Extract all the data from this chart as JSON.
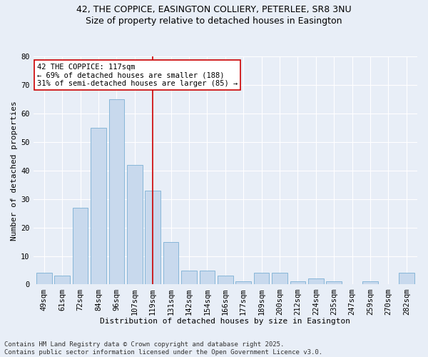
{
  "title_line1": "42, THE COPPICE, EASINGTON COLLIERY, PETERLEE, SR8 3NU",
  "title_line2": "Size of property relative to detached houses in Easington",
  "xlabel": "Distribution of detached houses by size in Easington",
  "ylabel": "Number of detached properties",
  "categories": [
    "49sqm",
    "61sqm",
    "72sqm",
    "84sqm",
    "96sqm",
    "107sqm",
    "119sqm",
    "131sqm",
    "142sqm",
    "154sqm",
    "166sqm",
    "177sqm",
    "189sqm",
    "200sqm",
    "212sqm",
    "224sqm",
    "235sqm",
    "247sqm",
    "259sqm",
    "270sqm",
    "282sqm"
  ],
  "values": [
    4,
    3,
    27,
    55,
    65,
    42,
    33,
    15,
    5,
    5,
    3,
    1,
    4,
    4,
    1,
    2,
    1,
    0,
    1,
    0,
    4
  ],
  "bar_color": "#c8d9ed",
  "bar_edge_color": "#7aafd4",
  "annotation_line1": "42 THE COPPICE: 117sqm",
  "annotation_line2": "← 69% of detached houses are smaller (188)",
  "annotation_line3": "31% of semi-detached houses are larger (85) →",
  "annotation_box_color": "#ffffff",
  "annotation_box_edge_color": "#cc0000",
  "vline_color": "#cc0000",
  "vline_index": 6,
  "ylim": [
    0,
    80
  ],
  "yticks": [
    0,
    10,
    20,
    30,
    40,
    50,
    60,
    70,
    80
  ],
  "footnote": "Contains HM Land Registry data © Crown copyright and database right 2025.\nContains public sector information licensed under the Open Government Licence v3.0.",
  "bg_color": "#e8eef7",
  "plot_bg_color": "#e8eef7",
  "grid_color": "#ffffff",
  "title_fontsize": 9,
  "subtitle_fontsize": 9,
  "axis_label_fontsize": 8,
  "tick_fontsize": 7.5,
  "annotation_fontsize": 7.5,
  "footnote_fontsize": 6.5
}
